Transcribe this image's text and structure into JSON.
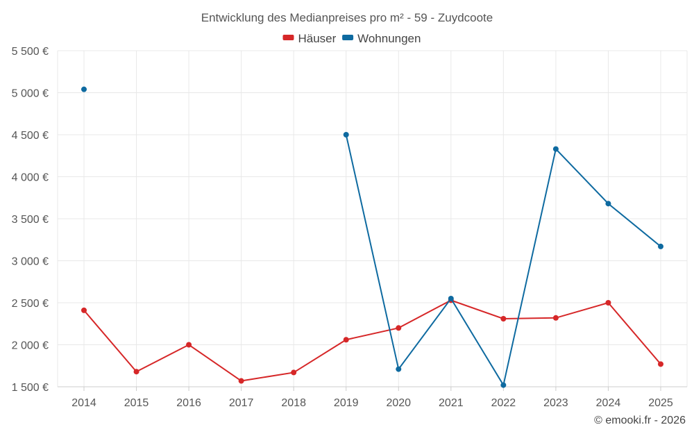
{
  "chart_data": {
    "type": "line",
    "title": "Entwicklung des Medianpreises pro m² - 59 - Zuydcoote",
    "categories": [
      "2014",
      "2015",
      "2016",
      "2017",
      "2018",
      "2019",
      "2020",
      "2021",
      "2022",
      "2023",
      "2024",
      "2025"
    ],
    "series": [
      {
        "name": "Häuser",
        "color": "#d62728",
        "values": [
          2410,
          1680,
          2000,
          1570,
          1670,
          2060,
          2200,
          2530,
          2310,
          2320,
          2500,
          1770
        ]
      },
      {
        "name": "Wohnungen",
        "color": "#0e6aa0",
        "values": [
          5040,
          null,
          null,
          null,
          null,
          4500,
          1710,
          2550,
          1520,
          4330,
          3680,
          3170
        ]
      }
    ],
    "yticks": [
      "1 500 €",
      "2 000 €",
      "2 500 €",
      "3 000 €",
      "3 500 €",
      "4 000 €",
      "4 500 €",
      "5 000 €",
      "5 500 €"
    ],
    "ytick_values": [
      1500,
      2000,
      2500,
      3000,
      3500,
      4000,
      4500,
      5000,
      5500
    ],
    "ylim": [
      1500,
      5500
    ],
    "xlabel": "",
    "ylabel": "",
    "grid": true,
    "legend": "top-center"
  },
  "credit": "© emooki.fr - 2026"
}
